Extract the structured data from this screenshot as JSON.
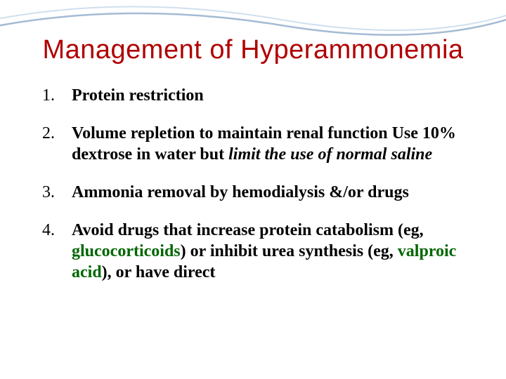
{
  "background_color": "#ffffff",
  "swoosh": {
    "stroke1": "#a9c4e0",
    "stroke2": "#5a84b0",
    "opacity": 0.55
  },
  "title": {
    "text": "Management of Hyperammonemia",
    "color": "#b00000",
    "fontsize": 38,
    "font_family": "Impact"
  },
  "body_fontsize": 24,
  "body_color": "#000000",
  "accent_green": "#006600",
  "items": [
    {
      "segments": [
        {
          "text": "Protein restriction",
          "bold": true
        }
      ]
    },
    {
      "segments": [
        {
          "text": "Volume repletion to maintain renal function Use 10% dextrose in water but ",
          "bold": true
        },
        {
          "text": "limit the use of normal saline",
          "bold": true,
          "italic": true
        }
      ]
    },
    {
      "segments": [
        {
          "text": "Ammonia removal by hemodialysis &/or drugs",
          "bold": true
        }
      ]
    },
    {
      "segments": [
        {
          "text": "Avoid drugs that increase protein catabolism (eg, ",
          "bold": true
        },
        {
          "text": "glucocorticoids",
          "green": true
        },
        {
          "text": ") or inhibit urea synthesis (eg, ",
          "bold": true
        },
        {
          "text": "valproic acid",
          "green": true
        },
        {
          "text": "), or have direct",
          "bold": true
        }
      ]
    }
  ]
}
